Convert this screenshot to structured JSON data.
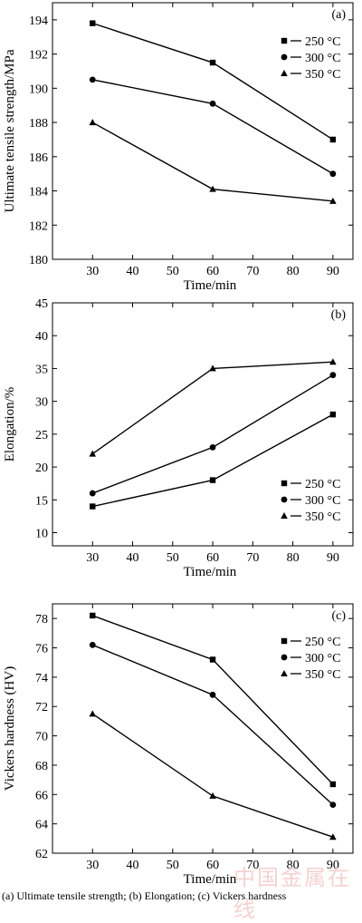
{
  "figure_caption": "(a) Ultimate tensile strength; (b) Elongation; (c) Vickers hardness",
  "watermark_text": "中国金属在线",
  "chart_data": [
    {
      "type": "line",
      "panel_tag": "(a)",
      "xlabel": "Time/min",
      "ylabel": "Ultimate tensile strength/MPa",
      "x": [
        30,
        60,
        90
      ],
      "xlim": [
        20,
        95
      ],
      "ylim": [
        180,
        195
      ],
      "xticks": [
        30,
        40,
        50,
        60,
        70,
        80,
        90
      ],
      "yticks": [
        180,
        182,
        184,
        186,
        188,
        190,
        192,
        194
      ],
      "legend_position": "top-right",
      "series": [
        {
          "name": "250 °C",
          "marker": "square",
          "values": [
            193.8,
            191.5,
            187.0
          ]
        },
        {
          "name": "300 °C",
          "marker": "circle",
          "values": [
            190.5,
            189.1,
            185.0
          ]
        },
        {
          "name": "350 °C",
          "marker": "triangle",
          "values": [
            188.0,
            184.1,
            183.4
          ]
        }
      ]
    },
    {
      "type": "line",
      "panel_tag": "(b)",
      "xlabel": "Time/min",
      "ylabel": "Elongation/%",
      "x": [
        30,
        60,
        90
      ],
      "xlim": [
        20,
        95
      ],
      "ylim": [
        8,
        45
      ],
      "xticks": [
        30,
        40,
        50,
        60,
        70,
        80,
        90
      ],
      "yticks": [
        10,
        15,
        20,
        25,
        30,
        35,
        40,
        45
      ],
      "legend_position": "bottom-right",
      "series": [
        {
          "name": "250 °C",
          "marker": "square",
          "values": [
            14,
            18,
            28
          ]
        },
        {
          "name": "300 °C",
          "marker": "circle",
          "values": [
            16,
            23,
            34
          ]
        },
        {
          "name": "350 °C",
          "marker": "triangle",
          "values": [
            22,
            35,
            36
          ]
        }
      ]
    },
    {
      "type": "line",
      "panel_tag": "(c)",
      "xlabel": "Time/min",
      "ylabel": "Vickers hardness (HV)",
      "x": [
        30,
        60,
        90
      ],
      "xlim": [
        20,
        95
      ],
      "ylim": [
        62,
        79
      ],
      "xticks": [
        30,
        40,
        50,
        60,
        70,
        80,
        90
      ],
      "yticks": [
        62,
        64,
        66,
        68,
        70,
        72,
        74,
        76,
        78
      ],
      "legend_position": "top-right",
      "series": [
        {
          "name": "250 °C",
          "marker": "square",
          "values": [
            78.2,
            75.2,
            66.7
          ]
        },
        {
          "name": "300 °C",
          "marker": "circle",
          "values": [
            76.2,
            72.8,
            65.3
          ]
        },
        {
          "name": "350 °C",
          "marker": "triangle",
          "values": [
            71.5,
            65.9,
            63.1
          ]
        }
      ]
    }
  ]
}
